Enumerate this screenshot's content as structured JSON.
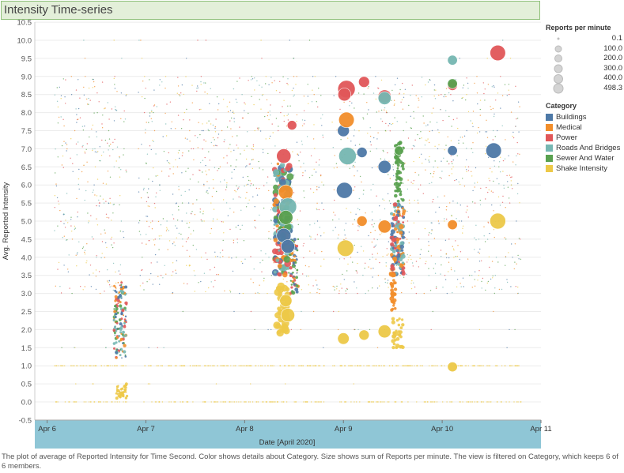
{
  "title": "Intensity Time-series",
  "caption": "The plot of average of Reported Intensity  for Time Second. Color shows details about Category. Size shows sum of Reports per minute. The view is filtered on Category, which keeps 6 of 6 members.",
  "legend": {
    "size_title": "Reports per minute",
    "size_entries": [
      "0.1",
      "100.0",
      "200.0",
      "300.0",
      "400.0",
      "498.3"
    ],
    "category_title": "Category",
    "categories": [
      {
        "name": "Buildings",
        "color": "#4e79a7"
      },
      {
        "name": "Medical",
        "color": "#f28e2b"
      },
      {
        "name": "Power",
        "color": "#e15759"
      },
      {
        "name": "Roads And Bridges",
        "color": "#76b7b2"
      },
      {
        "name": "Sewer And Water",
        "color": "#59a14f"
      },
      {
        "name": "Shake Intensity",
        "color": "#edc948"
      }
    ]
  },
  "chart_data": {
    "type": "scatter",
    "title": "Intensity Time-series",
    "xlabel": "Date [April 2020]",
    "ylabel": "Avg. Reported Intensity",
    "x_ticks": [
      "Apr 6",
      "Apr 7",
      "Apr 8",
      "Apr 9",
      "Apr 10",
      "Apr 11"
    ],
    "x_range": [
      "2020-04-05T21:00",
      "2020-04-11T00:00"
    ],
    "y_ticks": [
      "-0.5",
      "0.0",
      "0.5",
      "1.0",
      "1.5",
      "2.0",
      "2.5",
      "3.0",
      "3.5",
      "4.0",
      "4.5",
      "5.0",
      "5.5",
      "6.0",
      "6.5",
      "7.0",
      "7.5",
      "8.0",
      "8.5",
      "9.0",
      "9.5",
      "10.0",
      "10.5"
    ],
    "ylim": [
      -0.5,
      10.5
    ],
    "grid": "horizontal",
    "legend_position": "right",
    "series": [
      {
        "name": "Buildings",
        "points": [
          {
            "x": "2020-04-09T00:15",
            "y": 5.85,
            "size": 330
          },
          {
            "x": "2020-04-09T00:00",
            "y": 7.5,
            "size": 150
          },
          {
            "x": "2020-04-09T04:30",
            "y": 6.9,
            "size": 100
          },
          {
            "x": "2020-04-09T10:00",
            "y": 6.5,
            "size": 190
          },
          {
            "x": "2020-04-10T02:30",
            "y": 6.95,
            "size": 90
          },
          {
            "x": "2020-04-10T12:30",
            "y": 6.95,
            "size": 300
          },
          {
            "x": "2020-04-08T09:30",
            "y": 4.6,
            "size": 250
          },
          {
            "x": "2020-04-08T10:30",
            "y": 4.3,
            "size": 220
          }
        ]
      },
      {
        "name": "Medical",
        "points": [
          {
            "x": "2020-04-09T00:45",
            "y": 7.8,
            "size": 300
          },
          {
            "x": "2020-04-09T04:30",
            "y": 5.0,
            "size": 100
          },
          {
            "x": "2020-04-09T10:00",
            "y": 4.85,
            "size": 190
          },
          {
            "x": "2020-04-10T02:30",
            "y": 4.9,
            "size": 90
          },
          {
            "x": "2020-04-08T10:00",
            "y": 5.8,
            "size": 260
          }
        ]
      },
      {
        "name": "Power",
        "points": [
          {
            "x": "2020-04-09T00:45",
            "y": 8.65,
            "size": 400
          },
          {
            "x": "2020-04-09T00:15",
            "y": 8.5,
            "size": 190
          },
          {
            "x": "2020-04-09T05:00",
            "y": 8.85,
            "size": 120
          },
          {
            "x": "2020-04-09T10:00",
            "y": 8.45,
            "size": 190
          },
          {
            "x": "2020-04-10T02:30",
            "y": 8.75,
            "size": 90
          },
          {
            "x": "2020-04-10T13:30",
            "y": 9.65,
            "size": 300
          },
          {
            "x": "2020-04-08T09:30",
            "y": 6.8,
            "size": 250
          },
          {
            "x": "2020-04-08T11:30",
            "y": 7.65,
            "size": 80
          }
        ]
      },
      {
        "name": "Roads And Bridges",
        "points": [
          {
            "x": "2020-04-09T01:00",
            "y": 6.8,
            "size": 400
          },
          {
            "x": "2020-04-09T10:00",
            "y": 8.4,
            "size": 190
          },
          {
            "x": "2020-04-10T02:30",
            "y": 9.45,
            "size": 90
          },
          {
            "x": "2020-04-08T10:30",
            "y": 5.4,
            "size": 400
          }
        ]
      },
      {
        "name": "Sewer And Water",
        "points": [
          {
            "x": "2020-04-10T02:30",
            "y": 8.8,
            "size": 90
          },
          {
            "x": "2020-04-09T13:30",
            "y": 6.95,
            "size": 70
          },
          {
            "x": "2020-04-08T10:00",
            "y": 5.1,
            "size": 240
          }
        ]
      },
      {
        "name": "Shake Intensity",
        "points": [
          {
            "x": "2020-04-09T00:30",
            "y": 4.25,
            "size": 350
          },
          {
            "x": "2020-04-09T00:00",
            "y": 1.75,
            "size": 140
          },
          {
            "x": "2020-04-09T05:00",
            "y": 1.85,
            "size": 100
          },
          {
            "x": "2020-04-09T10:00",
            "y": 1.95,
            "size": 190
          },
          {
            "x": "2020-04-10T02:30",
            "y": 0.97,
            "size": 90
          },
          {
            "x": "2020-04-10T13:30",
            "y": 5.0,
            "size": 320
          },
          {
            "x": "2020-04-08T10:30",
            "y": 2.4,
            "size": 220
          },
          {
            "x": "2020-04-08T10:00",
            "y": 2.8,
            "size": 160
          }
        ]
      }
    ]
  }
}
